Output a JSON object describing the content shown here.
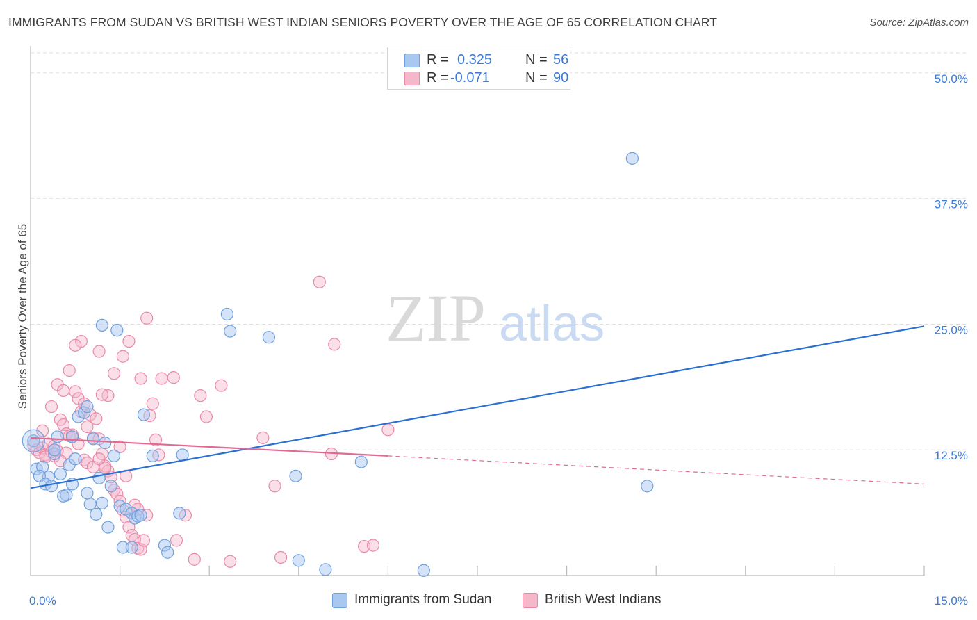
{
  "header": {
    "title": "IMMIGRANTS FROM SUDAN VS BRITISH WEST INDIAN SENIORS POVERTY OVER THE AGE OF 65 CORRELATION CHART",
    "source": "Source: ZipAtlas.com"
  },
  "legend_top": {
    "rows": [
      {
        "r_label": "R =",
        "r_value": "0.325",
        "n_label": "N =",
        "n_value": "56"
      },
      {
        "r_label": "R =",
        "r_value": "-0.071",
        "n_label": "N =",
        "n_value": "90"
      }
    ]
  },
  "watermark": {
    "zip": "ZIP",
    "atlas": "atlas"
  },
  "colors": {
    "blue_fill": "#a9c8f0",
    "blue_stroke": "#6f9fdc",
    "blue_line": "#2a6fd1",
    "pink_fill": "#f5b8cb",
    "pink_stroke": "#e88aa8",
    "pink_line": "#e06a93",
    "tick_label": "#3c7ad6",
    "grid": "#dedede"
  },
  "chart_data": {
    "type": "scatter",
    "title": "IMMIGRANTS FROM SUDAN VS BRITISH WEST INDIAN SENIORS POVERTY OVER THE AGE OF 65 CORRELATION CHART",
    "xlabel": "",
    "ylabel": "Seniors Poverty Over the Age of 65",
    "xlim": [
      0,
      15
    ],
    "ylim": [
      0,
      52
    ],
    "x_tick_labels": [
      {
        "value": 0,
        "label": "0.0%"
      },
      {
        "value": 15,
        "label": "15.0%"
      }
    ],
    "x_minor_ticks": [
      1.5,
      3.0,
      4.5,
      6.0,
      7.5,
      9.0,
      10.5,
      12.0,
      13.5,
      15.0
    ],
    "y_ticks": [
      {
        "value": 12.5,
        "label": "12.5%"
      },
      {
        "value": 25,
        "label": "25.0%"
      },
      {
        "value": 37.5,
        "label": "37.5%"
      },
      {
        "value": 50,
        "label": "50.0%"
      }
    ],
    "grid": true,
    "legend_position": "bottom-center",
    "series": [
      {
        "name": "Immigrants from Sudan",
        "color": "#a9c8f0",
        "r": 0.325,
        "n": 56,
        "trend": {
          "x0": 0,
          "y0": 8.7,
          "x1": 15,
          "y1": 24.8
        },
        "points": [
          [
            0.05,
            13.4
          ],
          [
            0.1,
            10.6
          ],
          [
            0.2,
            10.8
          ],
          [
            0.3,
            9.8
          ],
          [
            0.4,
            12.1
          ],
          [
            0.5,
            10.1
          ],
          [
            0.6,
            8.0
          ],
          [
            0.7,
            9.1
          ],
          [
            0.15,
            9.9
          ],
          [
            0.25,
            9.1
          ],
          [
            0.35,
            8.9
          ],
          [
            0.45,
            13.8
          ],
          [
            0.55,
            7.9
          ],
          [
            0.65,
            11.0
          ],
          [
            0.75,
            11.6
          ],
          [
            0.8,
            15.8
          ],
          [
            0.9,
            16.2
          ],
          [
            0.95,
            16.8
          ],
          [
            1.05,
            13.6
          ],
          [
            1.15,
            9.7
          ],
          [
            1.2,
            7.2
          ],
          [
            1.1,
            6.1
          ],
          [
            1.3,
            4.8
          ],
          [
            1.35,
            8.9
          ],
          [
            1.4,
            11.9
          ],
          [
            1.5,
            6.9
          ],
          [
            1.6,
            6.6
          ],
          [
            1.7,
            6.2
          ],
          [
            1.75,
            5.7
          ],
          [
            1.8,
            5.9
          ],
          [
            1.85,
            6.0
          ],
          [
            1.9,
            16.0
          ],
          [
            2.05,
            11.9
          ],
          [
            1.45,
            24.4
          ],
          [
            1.2,
            24.9
          ],
          [
            1.0,
            7.1
          ],
          [
            0.95,
            8.2
          ],
          [
            0.7,
            13.8
          ],
          [
            1.25,
            13.2
          ],
          [
            1.55,
            2.8
          ],
          [
            1.7,
            2.8
          ],
          [
            2.25,
            3.0
          ],
          [
            2.3,
            2.3
          ],
          [
            2.5,
            6.2
          ],
          [
            2.55,
            12.0
          ],
          [
            3.3,
            26.0
          ],
          [
            3.35,
            24.3
          ],
          [
            4.0,
            23.7
          ],
          [
            4.45,
            9.9
          ],
          [
            4.5,
            1.5
          ],
          [
            4.95,
            0.6
          ],
          [
            5.55,
            11.3
          ],
          [
            6.6,
            0.5
          ],
          [
            10.1,
            41.5
          ],
          [
            10.35,
            8.9
          ],
          [
            0.4,
            12.5
          ]
        ]
      },
      {
        "name": "British West Indians",
        "color": "#f5b8cb",
        "r": -0.071,
        "n": 90,
        "trend": {
          "x0": 0,
          "y0": 13.7,
          "x1": 6.0,
          "y1": 11.9
        },
        "trend_dashed": {
          "x0": 6.0,
          "y0": 11.9,
          "x1": 15,
          "y1": 9.1
        },
        "points": [
          [
            0.05,
            13.0
          ],
          [
            0.1,
            12.5
          ],
          [
            0.15,
            12.2
          ],
          [
            0.2,
            12.7
          ],
          [
            0.25,
            12.0
          ],
          [
            0.3,
            13.1
          ],
          [
            0.35,
            12.3
          ],
          [
            0.4,
            11.9
          ],
          [
            0.45,
            12.4
          ],
          [
            0.5,
            15.5
          ],
          [
            0.55,
            15.0
          ],
          [
            0.6,
            14.1
          ],
          [
            0.65,
            13.9
          ],
          [
            0.7,
            14.0
          ],
          [
            0.75,
            18.3
          ],
          [
            0.8,
            17.6
          ],
          [
            0.85,
            16.3
          ],
          [
            0.9,
            17.1
          ],
          [
            0.95,
            14.8
          ],
          [
            1.0,
            16.0
          ],
          [
            1.05,
            13.7
          ],
          [
            1.1,
            15.6
          ],
          [
            1.15,
            13.6
          ],
          [
            1.2,
            12.1
          ],
          [
            1.25,
            10.9
          ],
          [
            1.3,
            10.4
          ],
          [
            1.35,
            9.8
          ],
          [
            1.4,
            8.5
          ],
          [
            1.45,
            8.1
          ],
          [
            1.5,
            7.4
          ],
          [
            1.55,
            6.5
          ],
          [
            1.6,
            5.8
          ],
          [
            1.65,
            4.8
          ],
          [
            1.7,
            4.0
          ],
          [
            1.75,
            3.6
          ],
          [
            1.8,
            2.7
          ],
          [
            1.85,
            2.6
          ],
          [
            1.9,
            3.5
          ],
          [
            1.95,
            6.0
          ],
          [
            2.0,
            15.9
          ],
          [
            2.05,
            17.1
          ],
          [
            2.1,
            13.5
          ],
          [
            2.15,
            12.0
          ],
          [
            2.2,
            19.6
          ],
          [
            1.85,
            19.6
          ],
          [
            1.65,
            23.3
          ],
          [
            1.55,
            21.8
          ],
          [
            1.4,
            20.1
          ],
          [
            1.3,
            17.9
          ],
          [
            1.2,
            18.0
          ],
          [
            1.15,
            22.3
          ],
          [
            0.85,
            23.3
          ],
          [
            0.75,
            22.9
          ],
          [
            0.65,
            20.4
          ],
          [
            0.45,
            19.0
          ],
          [
            0.55,
            18.4
          ],
          [
            0.35,
            16.8
          ],
          [
            0.9,
            11.5
          ],
          [
            0.95,
            11.2
          ],
          [
            1.05,
            10.8
          ],
          [
            1.15,
            11.6
          ],
          [
            1.25,
            10.7
          ],
          [
            1.5,
            12.8
          ],
          [
            1.6,
            9.9
          ],
          [
            1.75,
            7.0
          ],
          [
            1.8,
            6.6
          ],
          [
            0.8,
            13.1
          ],
          [
            0.6,
            12.2
          ],
          [
            0.5,
            11.4
          ],
          [
            0.4,
            12.9
          ],
          [
            0.25,
            11.8
          ],
          [
            0.2,
            14.4
          ],
          [
            2.4,
            19.7
          ],
          [
            2.45,
            3.5
          ],
          [
            2.85,
            17.9
          ],
          [
            2.6,
            6.0
          ],
          [
            2.95,
            15.8
          ],
          [
            3.2,
            18.9
          ],
          [
            3.35,
            1.4
          ],
          [
            3.9,
            13.7
          ],
          [
            4.1,
            8.9
          ],
          [
            4.2,
            1.8
          ],
          [
            4.85,
            29.2
          ],
          [
            5.05,
            12.1
          ],
          [
            5.1,
            23.0
          ],
          [
            5.6,
            2.9
          ],
          [
            5.75,
            3.0
          ],
          [
            6.0,
            14.5
          ],
          [
            2.75,
            1.6
          ],
          [
            1.95,
            25.6
          ]
        ]
      }
    ]
  },
  "bottom_legend": [
    {
      "label": "Immigrants from Sudan"
    },
    {
      "label": "British West Indians"
    }
  ]
}
